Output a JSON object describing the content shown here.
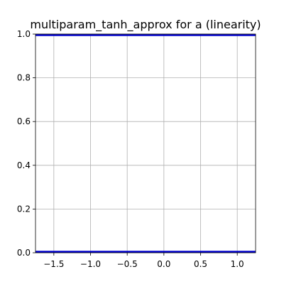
{
  "chart_data": {
    "type": "line",
    "title": "multiparam_tanh_approx for a (linearity)",
    "xlabel": "",
    "ylabel": "",
    "xlim": [
      -1.75,
      1.25
    ],
    "ylim": [
      0.0,
      1.0
    ],
    "grid": true,
    "x_ticks": [
      -1.5,
      -1.0,
      -0.5,
      0.0,
      0.5,
      1.0
    ],
    "x_tick_labels": [
      "−1.5",
      "−1.0",
      "−0.5",
      "0.0",
      "0.5",
      "1.0"
    ],
    "y_ticks": [
      0.0,
      0.2,
      0.4,
      0.6,
      0.8,
      1.0
    ],
    "y_tick_labels": [
      "0.0",
      "0.2",
      "0.4",
      "0.6",
      "0.8",
      "1.0"
    ],
    "series": [
      {
        "x": [
          -1.75,
          1.25
        ],
        "values": [
          0.995,
          0.995
        ],
        "color": "#0000cc"
      },
      {
        "x": [
          -1.75,
          1.25
        ],
        "values": [
          0.005,
          0.005
        ],
        "color": "#0000cc"
      }
    ]
  }
}
